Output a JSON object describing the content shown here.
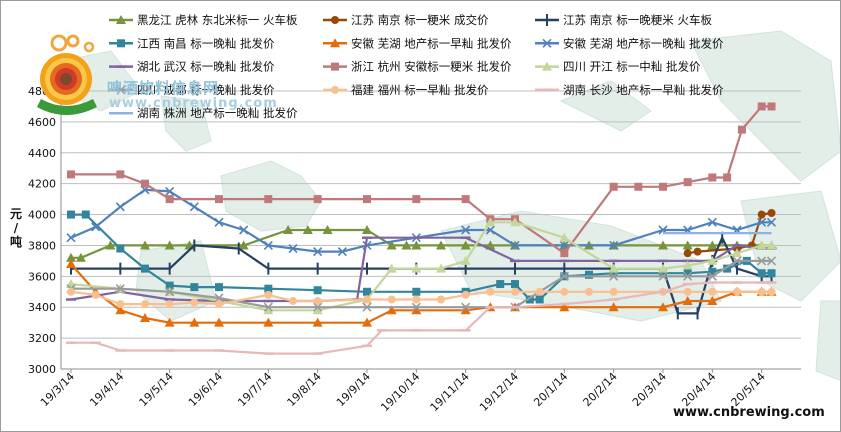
{
  "chart_data": {
    "type": "line",
    "title": "",
    "xlabel": "",
    "ylabel": "元/吨",
    "ylim": [
      3000,
      4800
    ],
    "yticks": [
      3000,
      3200,
      3400,
      3600,
      3800,
      4000,
      4200,
      4400,
      4600,
      4800
    ],
    "grid": "horizontal",
    "legend_placement": "top",
    "x_labels": [
      "19/3/14",
      "19/4/14",
      "19/5/14",
      "19/6/14",
      "19/7/14",
      "19/8/14",
      "19/9/14",
      "19/10/14",
      "19/11/14",
      "19/12/14",
      "20/1/14",
      "20/2/14",
      "20/3/14",
      "20/4/14",
      "20/5/14"
    ],
    "series": [
      {
        "name": "黑龙江 虎林 东北米标一 火车板",
        "color": "#77933c",
        "marker": "triangle",
        "x": [
          0,
          0.2,
          0.8,
          1.5,
          2,
          2.4,
          3.5,
          4.4,
          4.8,
          5.2,
          6,
          6.5,
          6.8,
          7,
          7.5,
          8,
          8.5,
          9,
          10,
          10.5,
          11,
          12,
          12.5,
          13,
          13.5,
          14,
          14.2
        ],
        "y": [
          3720,
          3720,
          3800,
          3800,
          3800,
          3800,
          3800,
          3900,
          3900,
          3900,
          3900,
          3800,
          3800,
          3800,
          3800,
          3800,
          3800,
          3800,
          3800,
          3800,
          3800,
          3800,
          3800,
          3800,
          3800,
          3800,
          3800
        ]
      },
      {
        "name": "江苏 南京 标一粳米 成交价",
        "color": "#984807",
        "marker": "circle",
        "x": [
          12.5,
          12.7,
          13.5,
          13.8,
          14,
          14.2
        ],
        "y": [
          3750,
          3760,
          3780,
          3800,
          4000,
          4010
        ]
      },
      {
        "name": "江苏 南京 标一晚粳米 火车板",
        "color": "#254061",
        "marker": "plus",
        "x": [
          0,
          1,
          2,
          2.5,
          3.4,
          4,
          5,
          6,
          7,
          8,
          9,
          10,
          11,
          12,
          12.3,
          12.7,
          13,
          13.2,
          13.5,
          14,
          14.2
        ],
        "y": [
          3650,
          3650,
          3650,
          3800,
          3780,
          3650,
          3650,
          3650,
          3650,
          3650,
          3650,
          3650,
          3650,
          3650,
          3360,
          3360,
          3700,
          3850,
          3650,
          3600,
          3600
        ]
      },
      {
        "name": "江西 南昌 标一晚籼 批发价",
        "color": "#31859c",
        "marker": "square",
        "x": [
          0,
          0.3,
          1,
          1.5,
          2,
          2.5,
          3,
          4,
          5,
          6,
          7,
          8,
          8.7,
          9,
          9.3,
          9.5,
          10,
          10.5,
          11,
          12,
          12.5,
          13,
          13.3,
          13.7,
          14,
          14.2
        ],
        "y": [
          4000,
          4000,
          3780,
          3650,
          3540,
          3530,
          3530,
          3520,
          3510,
          3500,
          3500,
          3500,
          3550,
          3550,
          3450,
          3450,
          3600,
          3610,
          3620,
          3620,
          3620,
          3630,
          3650,
          3700,
          3620,
          3620
        ]
      },
      {
        "name": "安徽 芜湖 地产标一早籼 批发价",
        "color": "#e46c0a",
        "marker": "triangle",
        "x": [
          0,
          0.5,
          1,
          1.5,
          2,
          2.5,
          3,
          4,
          5,
          6,
          6.5,
          7,
          8,
          8.5,
          9,
          10,
          11,
          12,
          12.5,
          13,
          13.5,
          14,
          14.2
        ],
        "y": [
          3680,
          3500,
          3380,
          3330,
          3300,
          3300,
          3300,
          3300,
          3300,
          3300,
          3380,
          3380,
          3380,
          3400,
          3400,
          3400,
          3400,
          3400,
          3440,
          3440,
          3500,
          3500,
          3500
        ]
      },
      {
        "name": "安徽 芜湖 地产标一晚籼 批发价",
        "color": "#4f81bd",
        "marker": "x",
        "x": [
          0,
          0.5,
          1,
          1.5,
          2,
          2.5,
          3,
          3.5,
          4,
          4.5,
          5,
          5.5,
          6,
          7,
          8,
          8.5,
          9,
          10,
          11,
          12,
          12.5,
          13,
          13.5,
          14,
          14.2
        ],
        "y": [
          3850,
          3920,
          4050,
          4160,
          4150,
          4050,
          3950,
          3900,
          3800,
          3780,
          3760,
          3760,
          3800,
          3850,
          3900,
          3900,
          3800,
          3800,
          3800,
          3900,
          3900,
          3950,
          3900,
          3950,
          3950
        ]
      },
      {
        "name": "湖北 武汉 标一晚籼 批发价",
        "color": "#8064a2",
        "marker": "dash",
        "x": [
          0,
          1,
          2,
          3,
          4,
          5,
          5.8,
          6,
          7,
          8,
          9,
          10,
          11,
          12,
          12.5,
          13,
          13.5,
          14,
          14.2
        ],
        "y": [
          3450,
          3500,
          3450,
          3440,
          3440,
          3440,
          3450,
          3850,
          3850,
          3850,
          3700,
          3700,
          3700,
          3700,
          3700,
          3700,
          3800,
          3780,
          3780
        ]
      },
      {
        "name": "浙江 杭州 安徽标一粳米 批发价",
        "color": "#c0797b",
        "marker": "square",
        "x": [
          0,
          1,
          1.5,
          2,
          3,
          4,
          5,
          6,
          7,
          8,
          8.5,
          9,
          10,
          11,
          11.5,
          12,
          12.5,
          13,
          13.3,
          13.6,
          14,
          14.2
        ],
        "y": [
          4260,
          4260,
          4200,
          4100,
          4100,
          4100,
          4100,
          4100,
          4100,
          4100,
          3970,
          3970,
          3750,
          4180,
          4180,
          4180,
          4210,
          4240,
          4240,
          4550,
          4700,
          4700
        ]
      },
      {
        "name": "四川 开江 标一中籼 批发价",
        "color": "#c3d69b",
        "marker": "triangle",
        "x": [
          0,
          1,
          2,
          3,
          4,
          5,
          6,
          6.5,
          7,
          7.5,
          8,
          8.5,
          9,
          10,
          11,
          12,
          12.5,
          13,
          13.5,
          14,
          14.2
        ],
        "y": [
          3550,
          3520,
          3500,
          3440,
          3380,
          3380,
          3450,
          3650,
          3650,
          3650,
          3700,
          3950,
          3950,
          3850,
          3650,
          3650,
          3670,
          3700,
          3750,
          3800,
          3800
        ]
      },
      {
        "name": "四川 成都 标一晚籼 批发价",
        "color": "#9a9a9a",
        "marker": "x",
        "x": [
          0,
          1,
          2,
          3,
          4,
          5,
          6,
          7,
          8,
          9,
          10,
          11,
          12,
          12.5,
          13,
          13.5,
          14,
          14.2
        ],
        "y": [
          3520,
          3520,
          3500,
          3460,
          3400,
          3400,
          3400,
          3400,
          3400,
          3400,
          3600,
          3600,
          3600,
          3600,
          3600,
          3700,
          3700,
          3700
        ]
      },
      {
        "name": "福建 福州 标一早籼 批发价",
        "color": "#fabf8f",
        "marker": "circle",
        "x": [
          0,
          0.5,
          1,
          1.5,
          2,
          2.5,
          3,
          4,
          4.5,
          5,
          6,
          6.5,
          7,
          7.5,
          8,
          8.5,
          9,
          9.5,
          10,
          10.5,
          11,
          12,
          12.5,
          13,
          13.5,
          14,
          14.2
        ],
        "y": [
          3500,
          3480,
          3420,
          3420,
          3420,
          3430,
          3420,
          3480,
          3440,
          3440,
          3450,
          3450,
          3450,
          3450,
          3480,
          3500,
          3500,
          3500,
          3500,
          3500,
          3500,
          3500,
          3500,
          3500,
          3500,
          3500,
          3500
        ]
      },
      {
        "name": "湖南 长沙 地产标一早籼 批发价",
        "color": "#e6b9b8",
        "marker": "dash",
        "x": [
          0,
          0.5,
          1,
          2,
          3,
          4,
          5,
          6,
          6.3,
          7,
          8,
          8.5,
          9,
          10,
          11,
          12,
          12.5,
          13,
          13.5,
          14,
          14.2
        ],
        "y": [
          3170,
          3170,
          3120,
          3120,
          3120,
          3100,
          3100,
          3150,
          3250,
          3250,
          3250,
          3400,
          3400,
          3420,
          3450,
          3500,
          3550,
          3560,
          3560,
          3560,
          3560
        ]
      },
      {
        "name": "湖南 株洲 地产标一晚籼 批发价",
        "color": "#8db3e2",
        "marker": "none",
        "x": [
          12,
          12.5,
          13,
          13.5,
          14,
          14.2
        ],
        "y": [
          3880,
          3880,
          3880,
          3880,
          3880,
          3880
        ]
      }
    ]
  },
  "watermark": {
    "cn": "啤酒饮料信息网",
    "url": "www.cnbrewing.com"
  },
  "site_url": "www.cnbrewing.com"
}
